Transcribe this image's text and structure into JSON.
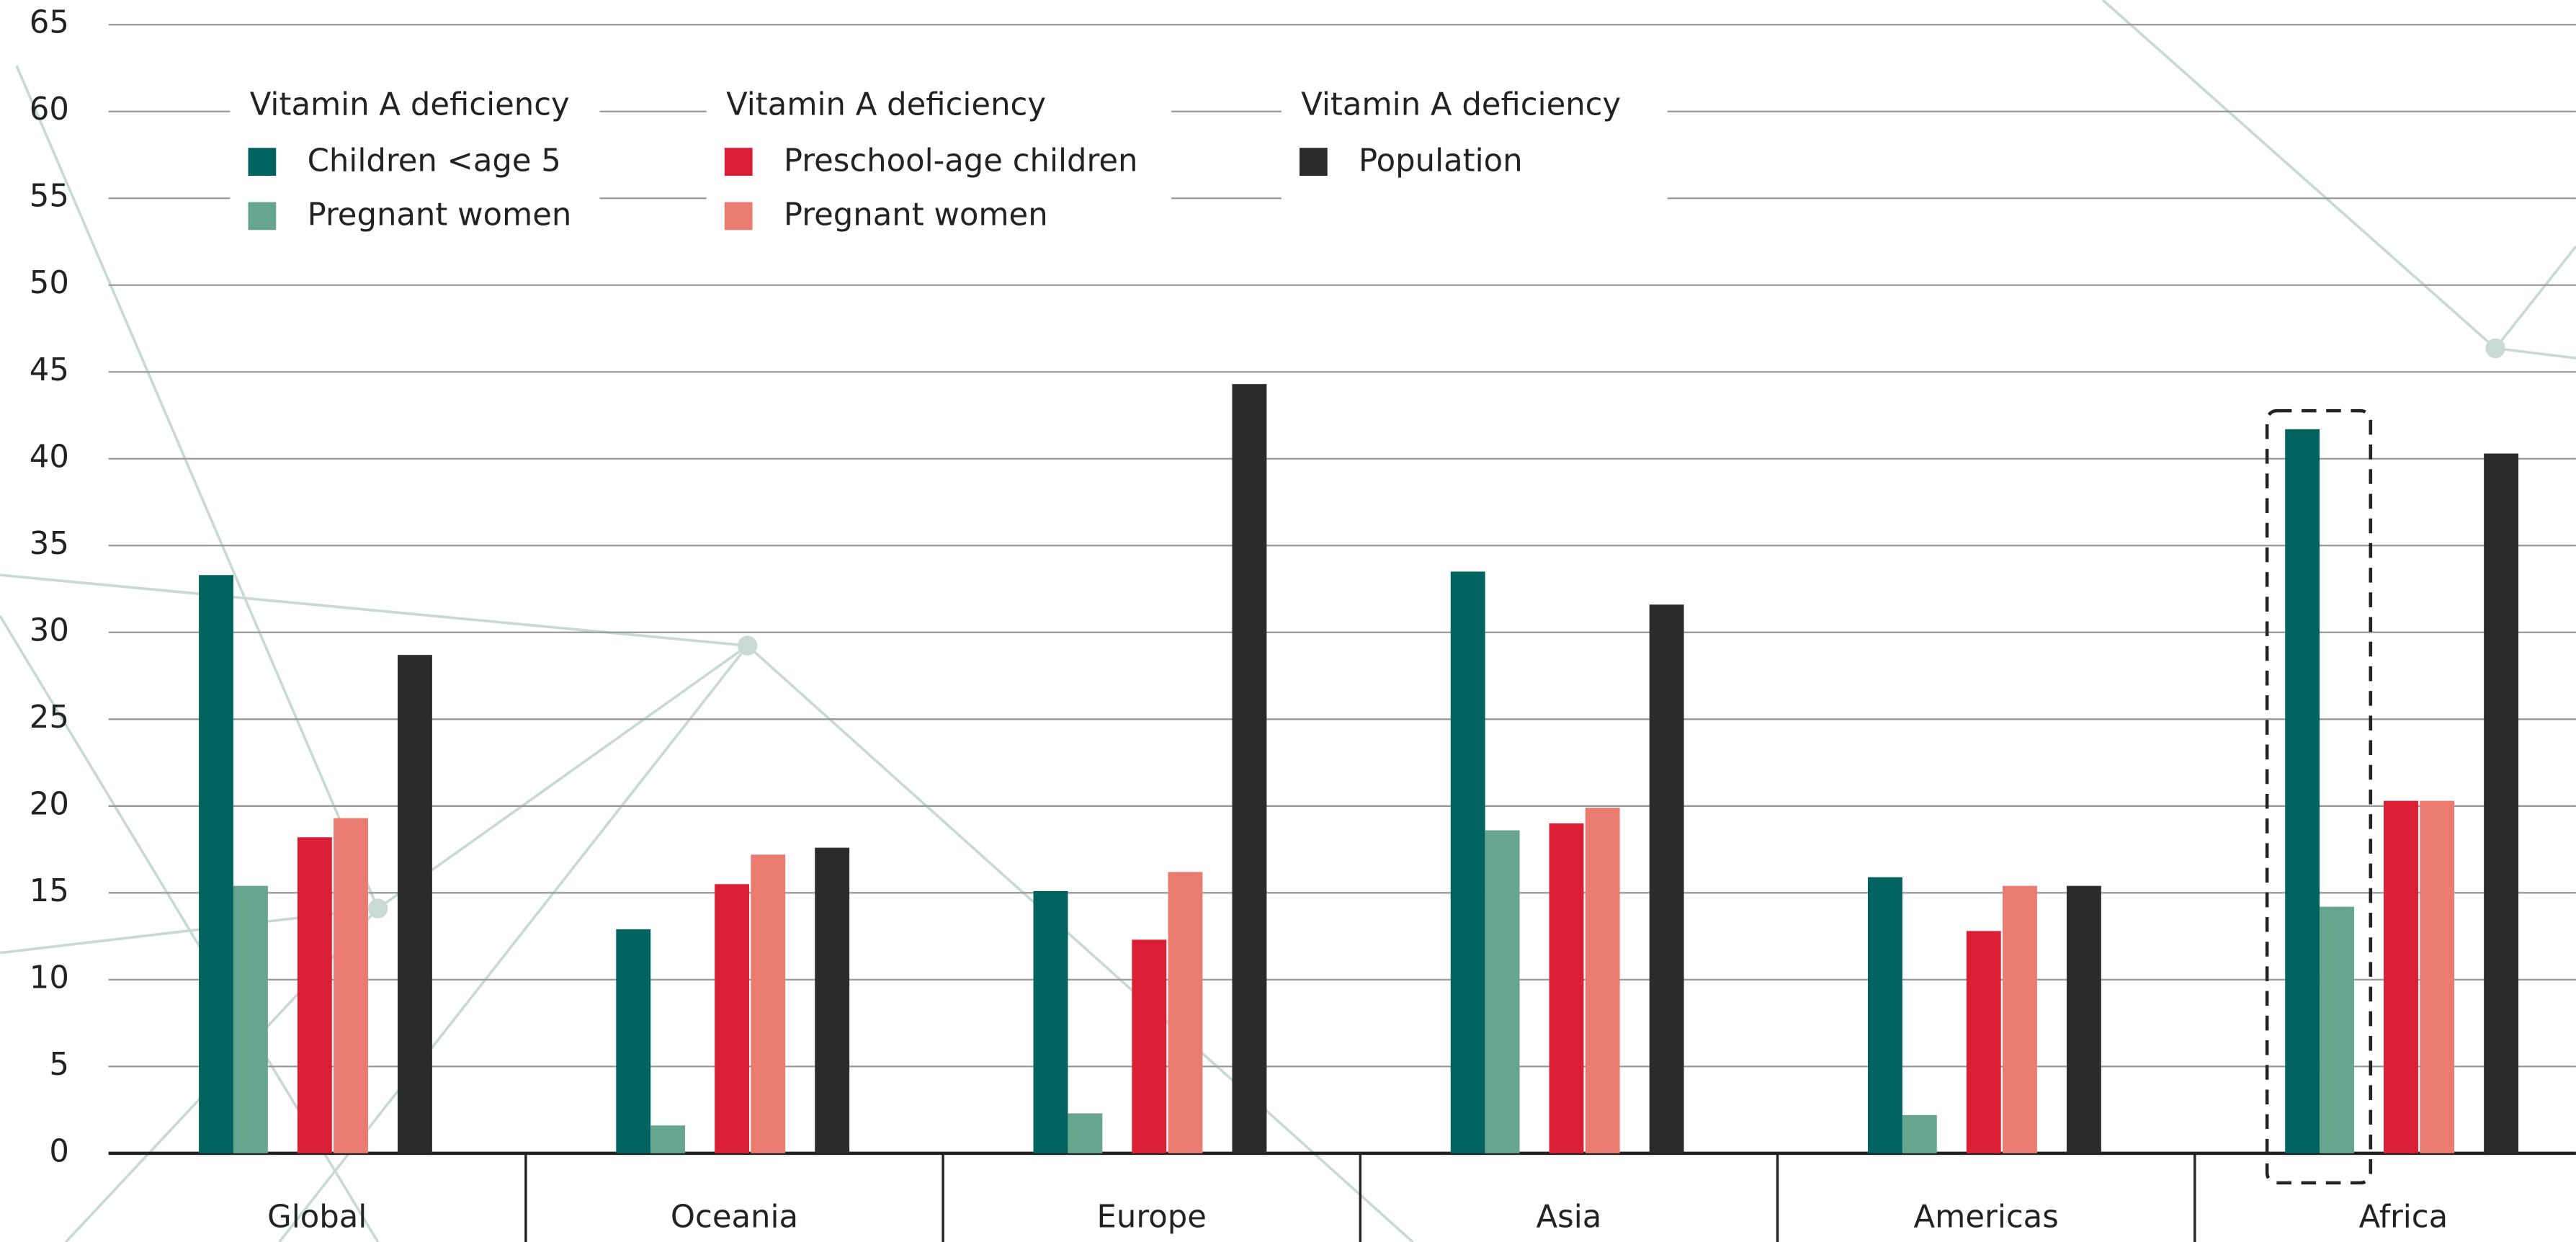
{
  "chart_data": {
    "type": "bar",
    "categories": [
      "Global",
      "Oceania",
      "Europe",
      "Asia",
      "Americas",
      "Africa"
    ],
    "ylim": [
      0,
      65
    ],
    "yticks": [
      0,
      5,
      10,
      15,
      20,
      25,
      30,
      35,
      40,
      45,
      50,
      55,
      60,
      65
    ],
    "grid": true,
    "series_groups": [
      {
        "title": "Vitamin A deficiency",
        "series": [
          {
            "name": "Children <age 5",
            "color": "#00635f",
            "values": [
              33.3,
              12.9,
              15.1,
              33.5,
              15.9,
              41.7
            ]
          },
          {
            "name": "Pregnant women",
            "color": "#66a58e",
            "values": [
              15.4,
              1.6,
              2.3,
              18.6,
              2.2,
              14.2
            ]
          }
        ]
      },
      {
        "title": "Vitamin A deficiency",
        "series": [
          {
            "name": "Preschool-age children",
            "color": "#da1e35",
            "values": [
              18.2,
              15.5,
              12.3,
              19.0,
              12.8,
              20.3
            ]
          },
          {
            "name": "Pregnant women",
            "color": "#e97b70",
            "values": [
              19.3,
              17.2,
              16.2,
              19.9,
              15.4,
              20.3
            ]
          }
        ]
      },
      {
        "title": "Vitamin A deficiency",
        "series": [
          {
            "name": "Population",
            "color": "#2b2b2b",
            "values": [
              28.7,
              17.6,
              44.3,
              31.6,
              15.4,
              40.3
            ]
          }
        ]
      }
    ]
  }
}
